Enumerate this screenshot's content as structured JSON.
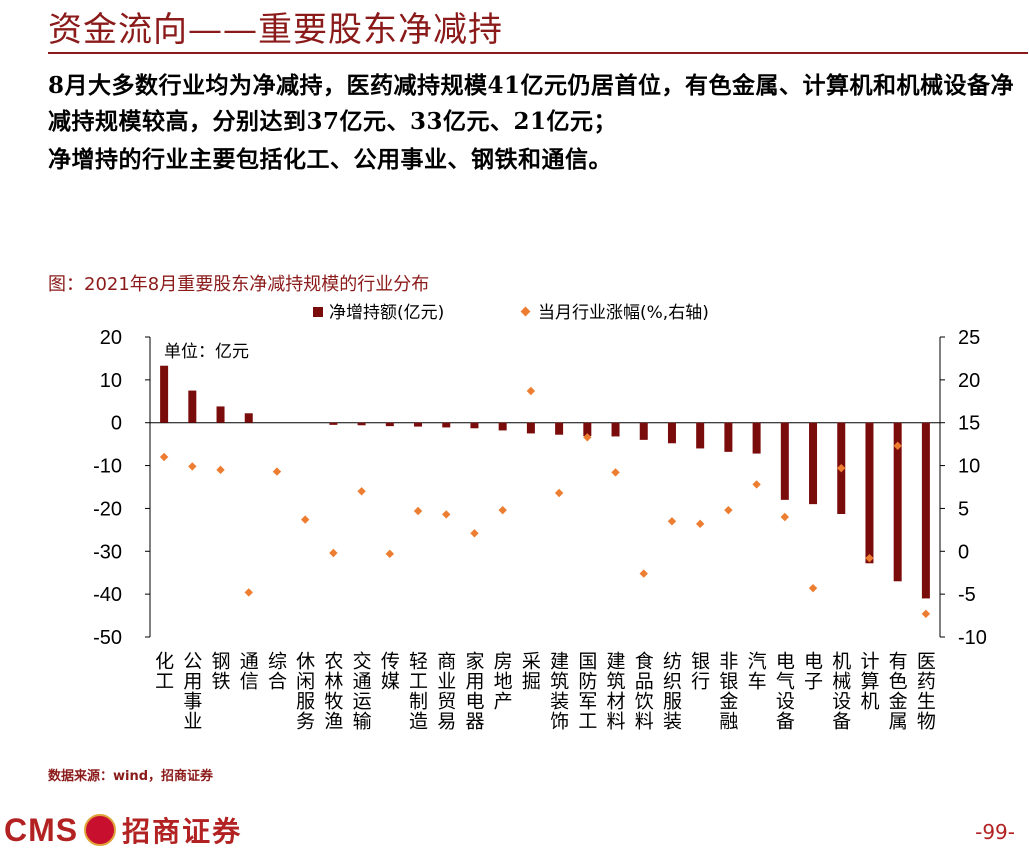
{
  "slide": {
    "title": "资金流向——重要股东净减持",
    "para1": "8月大多数行业均为净减持，医药减持规模41亿元仍居首位，有色金属、计算机和机械设备净减持规模较高，分别达到37亿元、33亿元、21亿元；",
    "para2": "净增持的行业主要包括化工、公用事业、钢铁和通信。",
    "source": "数据来源：wind，招商证券",
    "logo_text": "CMS",
    "logo_cn": "招商证券",
    "page_number": "-99-"
  },
  "colors": {
    "bar": "#7b0c0c",
    "dot": "#ed7d31",
    "accent": "#8b1a1a"
  },
  "chart_data": {
    "type": "bar+scatter",
    "title": "图：2021年8月重要股东净减持规模的行业分布",
    "unit_label": "单位：亿元",
    "legend": [
      "净增持额(亿元)",
      "当月行业涨幅(%,右轴)"
    ],
    "legend_position": "top",
    "categories": [
      "化工",
      "公用事业",
      "钢铁",
      "通信",
      "综合",
      "休闲服务",
      "农林牧渔",
      "交通运输",
      "传媒",
      "轻工制造",
      "商业贸易",
      "家用电器",
      "房地产",
      "采掘",
      "建筑装饰",
      "国防军工",
      "建筑材料",
      "食品饮料",
      "纺织服装",
      "银行",
      "非银金融",
      "汽车",
      "电气设备",
      "电子",
      "机械设备",
      "计算机",
      "有色金属",
      "医药生物"
    ],
    "series": [
      {
        "name": "净增持额(亿元)",
        "axis": "left",
        "kind": "bar",
        "values": [
          13.3,
          7.5,
          3.8,
          2.2,
          0,
          0,
          -0.5,
          -0.6,
          -0.8,
          -0.9,
          -1.1,
          -1.3,
          -1.8,
          -2.5,
          -2.8,
          -3.1,
          -3.2,
          -4.0,
          -4.8,
          -6.0,
          -6.8,
          -7.2,
          -18.0,
          -19.0,
          -21.3,
          -32.8,
          -37.0,
          -41.0
        ]
      },
      {
        "name": "当月行业涨幅(%,右轴)",
        "axis": "right",
        "kind": "scatter",
        "values": [
          11.0,
          9.9,
          9.5,
          -4.8,
          9.3,
          3.7,
          -0.2,
          7.0,
          -0.3,
          4.7,
          4.3,
          2.1,
          4.8,
          18.7,
          6.8,
          13.3,
          9.2,
          -2.6,
          3.5,
          3.2,
          4.8,
          7.8,
          4.0,
          -4.3,
          9.7,
          -0.8,
          12.3,
          -7.3
        ]
      }
    ],
    "yleft": {
      "min": -50,
      "max": 20,
      "ticks": [
        20,
        10,
        0,
        -10,
        -20,
        -30,
        -40,
        -50
      ]
    },
    "yright": {
      "min": -10,
      "max": 25,
      "ticks": [
        25,
        20,
        15,
        10,
        5,
        0,
        -5,
        -10
      ]
    },
    "grid": false
  }
}
